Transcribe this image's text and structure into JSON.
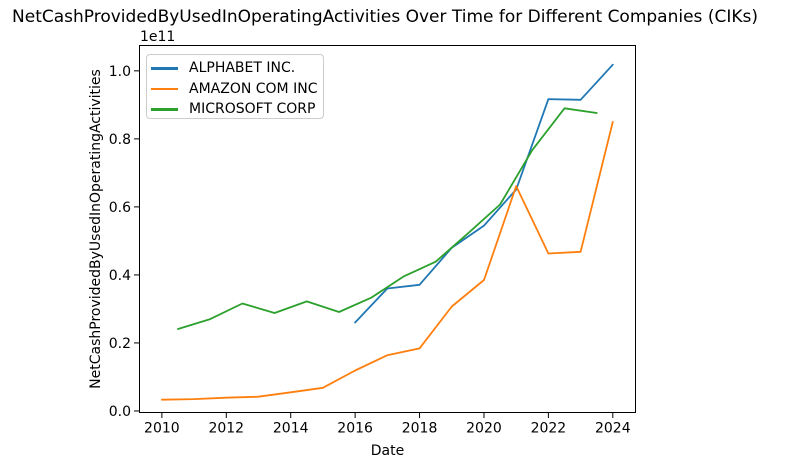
{
  "chart_data": {
    "type": "line",
    "title": "NetCashProvidedByUsedInOperatingActivities Over Time for Different Companies (CIKs)",
    "xlabel": "Date",
    "ylabel": "NetCashProvidedByUsedInOperatingActivities",
    "y_offset_text": "1e11",
    "y_units": "values below are in 1e9; axis tick labels shown with 1e11 offset",
    "xlim": [
      2009.29,
      2024.72
    ],
    "ylim_e9": [
      -0.6,
      107.6
    ],
    "xticks": [
      2010,
      2012,
      2014,
      2016,
      2018,
      2020,
      2022,
      2024
    ],
    "yticks": [
      {
        "v": 0,
        "label": "0.0"
      },
      {
        "v": 20,
        "label": "0.2"
      },
      {
        "v": 40,
        "label": "0.4"
      },
      {
        "v": 60,
        "label": "0.6"
      },
      {
        "v": 80,
        "label": "0.8"
      },
      {
        "v": 100,
        "label": "1.0"
      }
    ],
    "grid": false,
    "legend_position": "upper left",
    "series": [
      {
        "name": "ALPHABET INC.",
        "color": "#1f77b4",
        "points": [
          [
            2016.0,
            26.0
          ],
          [
            2017.0,
            36.0
          ],
          [
            2018.0,
            37.1
          ],
          [
            2019.0,
            48.0
          ],
          [
            2020.0,
            54.5
          ],
          [
            2021.0,
            65.1
          ],
          [
            2022.0,
            91.7
          ],
          [
            2023.0,
            91.5
          ],
          [
            2024.0,
            101.8
          ]
        ]
      },
      {
        "name": "AMAZON COM INC",
        "color": "#ff7f0e",
        "points": [
          [
            2010.0,
            3.3
          ],
          [
            2011.0,
            3.5
          ],
          [
            2012.0,
            3.9
          ],
          [
            2013.0,
            4.2
          ],
          [
            2014.0,
            5.5
          ],
          [
            2015.0,
            6.8
          ],
          [
            2016.0,
            11.9
          ],
          [
            2017.0,
            16.4
          ],
          [
            2018.0,
            18.4
          ],
          [
            2019.0,
            30.7
          ],
          [
            2020.0,
            38.5
          ],
          [
            2021.0,
            66.1
          ],
          [
            2022.0,
            46.3
          ],
          [
            2023.0,
            46.8
          ],
          [
            2024.0,
            85.0
          ]
        ]
      },
      {
        "name": "MICROSOFT CORP",
        "color": "#2ca02c",
        "points": [
          [
            2010.5,
            24.1
          ],
          [
            2011.5,
            27.0
          ],
          [
            2012.5,
            31.6
          ],
          [
            2013.5,
            28.8
          ],
          [
            2014.5,
            32.2
          ],
          [
            2015.5,
            29.1
          ],
          [
            2016.5,
            33.3
          ],
          [
            2017.5,
            39.5
          ],
          [
            2018.5,
            43.9
          ],
          [
            2019.5,
            52.2
          ],
          [
            2020.5,
            60.7
          ],
          [
            2021.5,
            76.7
          ],
          [
            2022.5,
            89.0
          ],
          [
            2023.5,
            87.6
          ]
        ]
      }
    ]
  }
}
